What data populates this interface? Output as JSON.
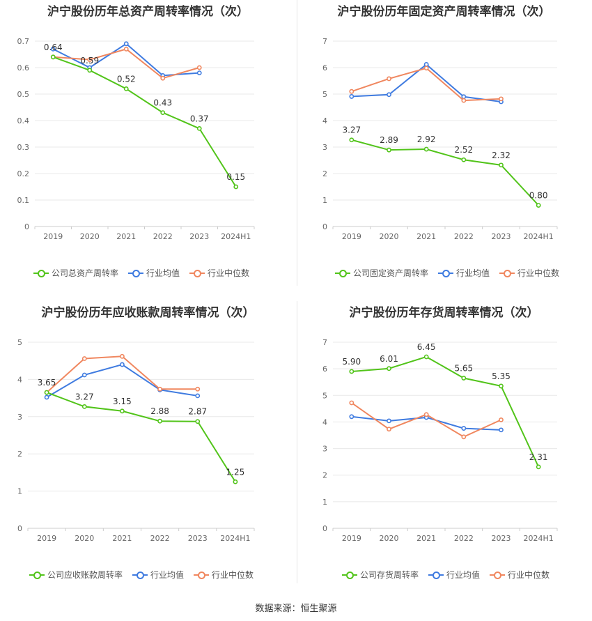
{
  "source": "数据来源：恒生聚源",
  "legend_series_1_names": [
    "公司总资产周转率",
    "公司固定资产周转率",
    "公司应收账款周转率",
    "公司存货周转率"
  ],
  "colors": {
    "company": "#52c41a",
    "avg": "#3f7be0",
    "median": "#f0875f",
    "grid": "#e8e8e8",
    "axis_text": "#666666"
  },
  "chart_data": [
    {
      "type": "line",
      "title": "沪宁股份历年总资产周转率情况（次）",
      "categories": [
        "2019",
        "2020",
        "2021",
        "2022",
        "2023",
        "2024H1"
      ],
      "ylim": [
        0,
        0.7
      ],
      "yticks": [
        "0",
        "0.1",
        "0.2",
        "0.3",
        "0.4",
        "0.5",
        "0.6",
        "0.7"
      ],
      "series": [
        {
          "name": "公司总资产周转率",
          "values": [
            0.64,
            0.59,
            0.52,
            0.43,
            0.37,
            0.15
          ],
          "labels": [
            "0.64",
            "0.59",
            "0.52",
            "0.43",
            "0.37",
            "0.15"
          ]
        },
        {
          "name": "行业均值",
          "values": [
            0.67,
            0.6,
            0.69,
            0.57,
            0.58,
            null
          ]
        },
        {
          "name": "行业中位数",
          "values": [
            0.64,
            0.63,
            0.67,
            0.56,
            0.6,
            null
          ]
        }
      ],
      "legend_position": "bottom"
    },
    {
      "type": "line",
      "title": "沪宁股份历年固定资产周转率情况（次）",
      "categories": [
        "2019",
        "2020",
        "2021",
        "2022",
        "2023",
        "2024H1"
      ],
      "ylim": [
        0,
        7
      ],
      "yticks": [
        "0",
        "1",
        "2",
        "3",
        "4",
        "5",
        "6",
        "7"
      ],
      "series": [
        {
          "name": "公司固定资产周转率",
          "values": [
            3.27,
            2.89,
            2.92,
            2.52,
            2.32,
            0.8
          ],
          "labels": [
            "3.27",
            "2.89",
            "2.92",
            "2.52",
            "2.32",
            "0.80"
          ]
        },
        {
          "name": "行业均值",
          "values": [
            4.91,
            4.98,
            6.12,
            4.9,
            4.71,
            null
          ]
        },
        {
          "name": "行业中位数",
          "values": [
            5.1,
            5.58,
            5.98,
            4.76,
            4.82,
            null
          ]
        }
      ],
      "legend_position": "bottom"
    },
    {
      "type": "line",
      "title": "沪宁股份历年应收账款周转率情况（次）",
      "categories": [
        "2019",
        "2020",
        "2021",
        "2022",
        "2023",
        "2024H1"
      ],
      "ylim": [
        0,
        5
      ],
      "yticks": [
        "0",
        "1",
        "2",
        "3",
        "4",
        "5"
      ],
      "series": [
        {
          "name": "公司应收账款周转率",
          "values": [
            3.65,
            3.27,
            3.15,
            2.88,
            2.87,
            1.25
          ],
          "labels": [
            "3.65",
            "3.27",
            "3.15",
            "2.88",
            "2.87",
            "1.25"
          ]
        },
        {
          "name": "行业均值",
          "values": [
            3.52,
            4.12,
            4.4,
            3.72,
            3.56,
            null
          ]
        },
        {
          "name": "行业中位数",
          "values": [
            3.65,
            4.56,
            4.62,
            3.74,
            3.74,
            null
          ]
        }
      ],
      "legend_position": "bottom"
    },
    {
      "type": "line",
      "title": "沪宁股份历年存货周转率情况（次）",
      "categories": [
        "2019",
        "2020",
        "2021",
        "2022",
        "2023",
        "2024H1"
      ],
      "ylim": [
        0,
        7
      ],
      "yticks": [
        "0",
        "1",
        "2",
        "3",
        "4",
        "5",
        "6",
        "7"
      ],
      "series": [
        {
          "name": "公司存货周转率",
          "values": [
            5.9,
            6.01,
            6.45,
            5.65,
            5.35,
            2.31
          ],
          "labels": [
            "5.90",
            "6.01",
            "6.45",
            "5.65",
            "5.35",
            "2.31"
          ]
        },
        {
          "name": "行业均值",
          "values": [
            4.2,
            4.04,
            4.17,
            3.76,
            3.7,
            null
          ]
        },
        {
          "name": "行业中位数",
          "values": [
            4.72,
            3.73,
            4.28,
            3.44,
            4.08,
            null
          ]
        }
      ],
      "legend_position": "bottom"
    }
  ]
}
